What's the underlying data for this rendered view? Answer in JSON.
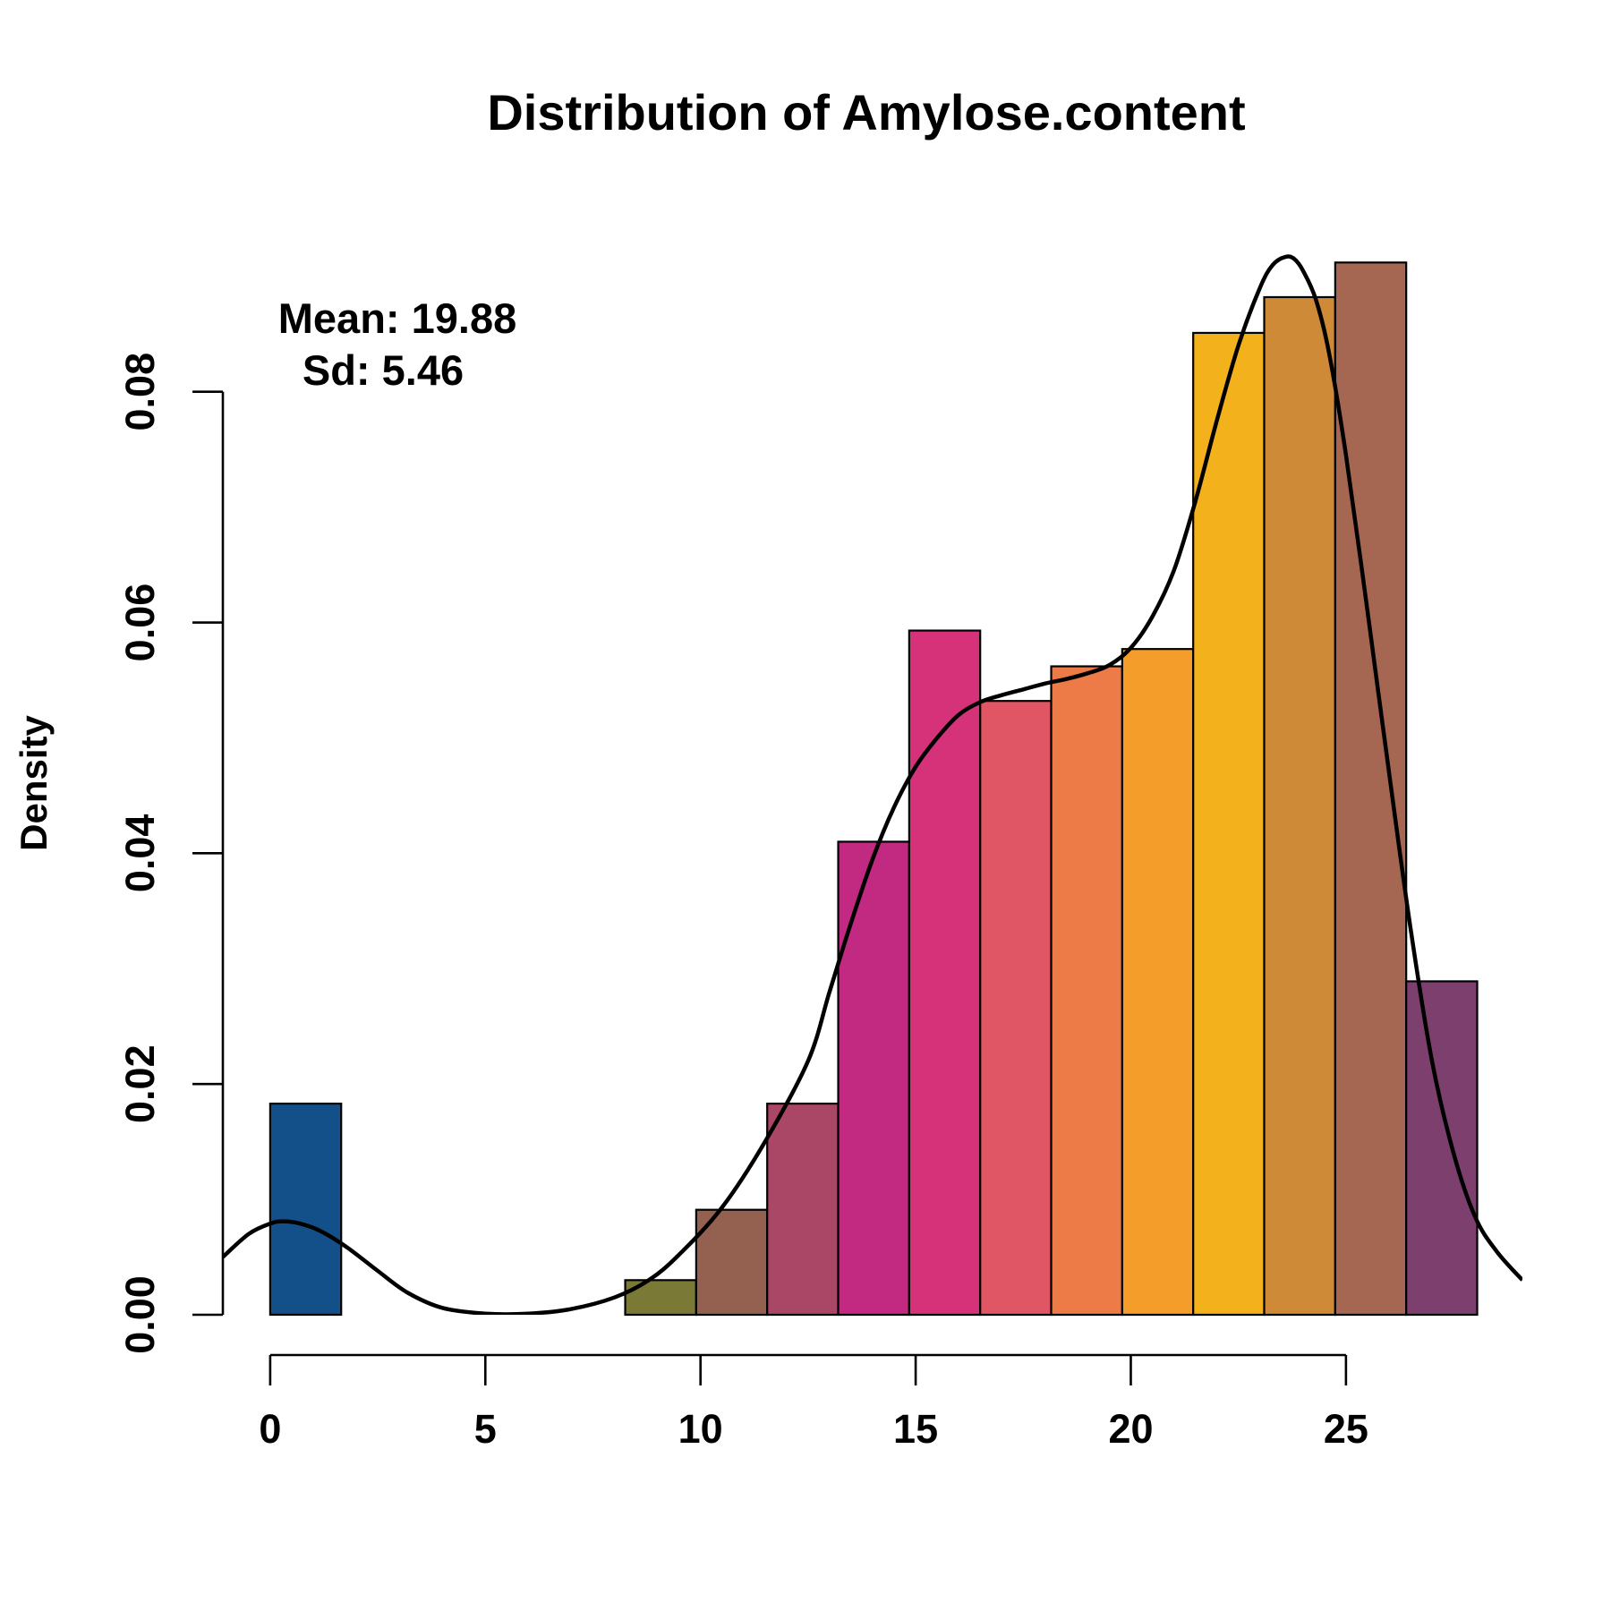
{
  "chart_data": {
    "type": "bar",
    "title": "Distribution of Amylose.content",
    "xlabel": "",
    "ylabel": "Density",
    "xlim": [
      -1.1,
      29.1
    ],
    "ylim": [
      0,
      0.092
    ],
    "x_ticks": [
      0,
      5,
      10,
      15,
      20,
      25
    ],
    "x_tick_labels": [
      "0",
      "5",
      "10",
      "15",
      "20",
      "25"
    ],
    "y_ticks": [
      0,
      0.02,
      0.04,
      0.06,
      0.08
    ],
    "y_tick_labels": [
      "0.00",
      "0.02",
      "0.04",
      "0.06",
      "0.08"
    ],
    "annotations": [
      "Mean: 19.88",
      "Sd: 5.46"
    ],
    "grid": false,
    "bins": [
      {
        "start": 0.0,
        "end": 1.65,
        "density": 0.0183,
        "color": "#135089"
      },
      {
        "start": 8.25,
        "end": 9.9,
        "density": 0.003,
        "color": "#7a7a36"
      },
      {
        "start": 9.9,
        "end": 11.55,
        "density": 0.0091,
        "color": "#946151"
      },
      {
        "start": 11.55,
        "end": 13.2,
        "density": 0.0183,
        "color": "#aa4666"
      },
      {
        "start": 13.2,
        "end": 14.85,
        "density": 0.041,
        "color": "#c12a80"
      },
      {
        "start": 14.85,
        "end": 16.5,
        "density": 0.0593,
        "color": "#d5327a"
      },
      {
        "start": 16.5,
        "end": 18.15,
        "density": 0.0532,
        "color": "#e05664"
      },
      {
        "start": 18.15,
        "end": 19.8,
        "density": 0.0562,
        "color": "#ec7b47"
      },
      {
        "start": 19.8,
        "end": 21.45,
        "density": 0.0577,
        "color": "#f49d2b"
      },
      {
        "start": 21.45,
        "end": 23.1,
        "density": 0.0851,
        "color": "#f3b11b"
      },
      {
        "start": 23.1,
        "end": 24.75,
        "density": 0.0882,
        "color": "#ce8a36"
      },
      {
        "start": 24.75,
        "end": 26.4,
        "density": 0.0912,
        "color": "#a66752"
      },
      {
        "start": 26.4,
        "end": 28.05,
        "density": 0.0289,
        "color": "#7c3f6e"
      }
    ],
    "density_curve": {
      "x": [
        -1.1,
        -0.5,
        0.0,
        0.3,
        0.7,
        1.2,
        1.8,
        2.5,
        3.2,
        4.0,
        5.0,
        6.0,
        7.0,
        8.0,
        8.8,
        9.5,
        10.5,
        11.5,
        12.5,
        13.0,
        13.5,
        14.0,
        14.5,
        15.0,
        15.5,
        16.0,
        16.5,
        17.0,
        17.5,
        18.0,
        18.5,
        19.0,
        19.5,
        20.0,
        20.5,
        21.0,
        21.5,
        22.0,
        22.5,
        23.0,
        23.3,
        23.6,
        23.8,
        24.0,
        24.3,
        24.6,
        25.0,
        25.5,
        26.0,
        26.5,
        27.0,
        27.5,
        28.0,
        28.5,
        29.1
      ],
      "y": [
        0.005,
        0.007,
        0.0079,
        0.0081,
        0.0079,
        0.0072,
        0.0058,
        0.0038,
        0.0019,
        0.0006,
        0.0001,
        0.0001,
        0.0005,
        0.0015,
        0.003,
        0.0052,
        0.0093,
        0.015,
        0.022,
        0.028,
        0.034,
        0.0395,
        0.044,
        0.0475,
        0.05,
        0.052,
        0.0531,
        0.0537,
        0.0542,
        0.0547,
        0.0551,
        0.0556,
        0.0563,
        0.0578,
        0.0605,
        0.0645,
        0.0705,
        0.0775,
        0.084,
        0.089,
        0.091,
        0.0917,
        0.0915,
        0.0905,
        0.088,
        0.0835,
        0.0745,
        0.061,
        0.047,
        0.0335,
        0.022,
        0.014,
        0.0085,
        0.0055,
        0.003
      ]
    }
  }
}
